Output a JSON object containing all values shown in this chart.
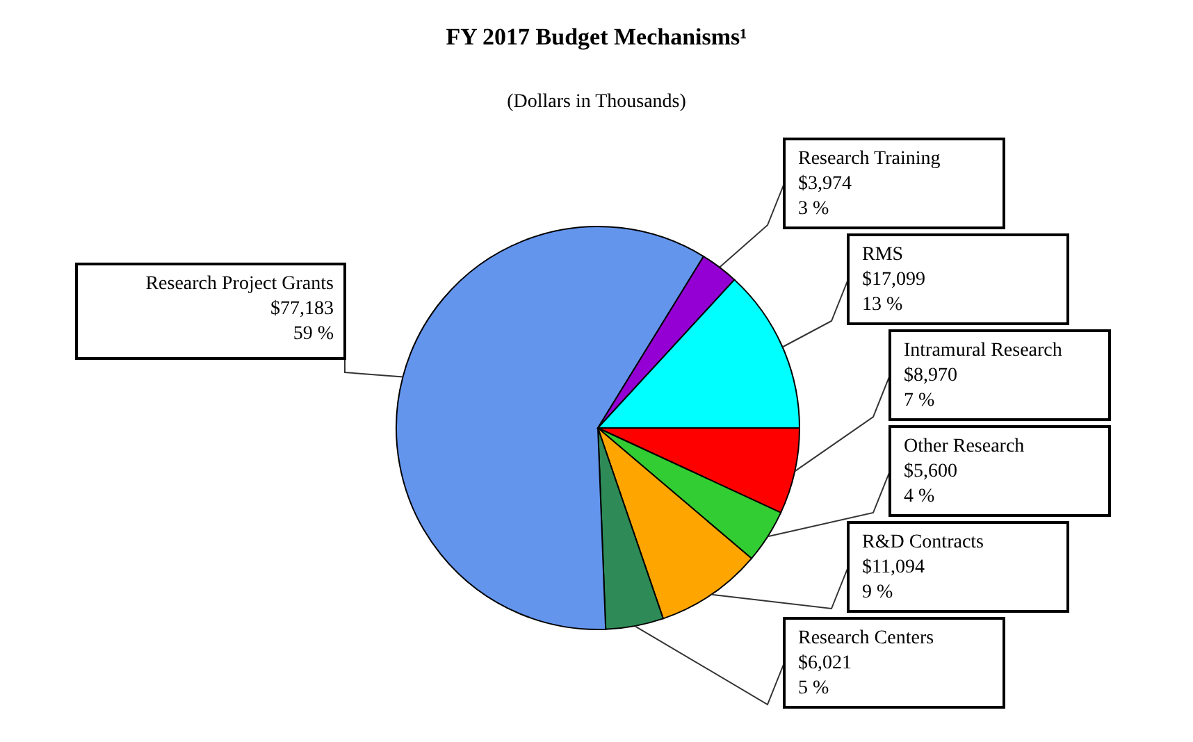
{
  "chart_data": {
    "type": "pie",
    "title": "FY 2017 Budget Mechanisms¹",
    "subtitle": "(Dollars in Thousands)",
    "categories": [
      "Intramural Research",
      "Other Research",
      "R&D Contracts",
      "Research Centers",
      "Research Project Grants",
      "Research Training",
      "RMS"
    ],
    "values": [
      8970,
      5600,
      11094,
      6021,
      77183,
      3974,
      17099
    ],
    "value_labels": [
      "$8,970\n7 %",
      "$5,600\n4 %",
      "$11,094\n9 %",
      "$6,021\n5 %",
      "$77,183\n59 %",
      "$3,974\n3 %",
      "$17,099\n13 %"
    ],
    "colors": [
      "#ff0000",
      "#32cd32",
      "#ffa500",
      "#2e8b57",
      "#6495ed",
      "#9400d3",
      "#00ffff"
    ]
  }
}
